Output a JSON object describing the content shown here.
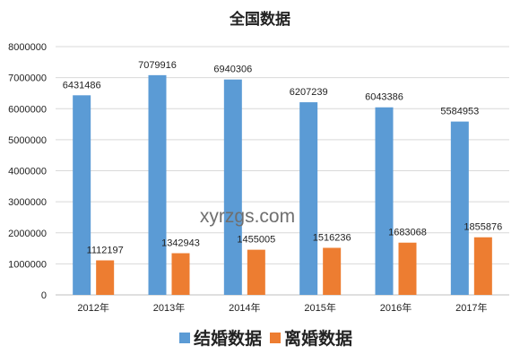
{
  "chart_data": {
    "type": "bar",
    "title": "全国数据",
    "categories": [
      "2012年",
      "2013年",
      "2014年",
      "2015年",
      "2016年",
      "2017年"
    ],
    "series": [
      {
        "name": "结婚数据",
        "color": "#5b9bd5",
        "values": [
          6431486,
          7079916,
          6940306,
          6207239,
          6043386,
          5584953
        ]
      },
      {
        "name": "离婚数据",
        "color": "#ed7d31",
        "values": [
          1112197,
          1342943,
          1455005,
          1516236,
          1683068,
          1855876
        ]
      }
    ],
    "value_labels": [
      [
        "6431486",
        "7079916",
        "6940306",
        "6207239",
        "6043386",
        "5584953"
      ],
      [
        "1112197",
        "1342943",
        "1455005",
        "1516236",
        "1683068",
        "1855876"
      ]
    ],
    "y_ticks": [
      "0",
      "1000000",
      "2000000",
      "3000000",
      "4000000",
      "5000000",
      "6000000",
      "7000000",
      "8000000"
    ],
    "ylim": [
      0,
      8000000
    ],
    "grid": true,
    "legend_position": "bottom",
    "watermark": "xyrzgs.com"
  }
}
